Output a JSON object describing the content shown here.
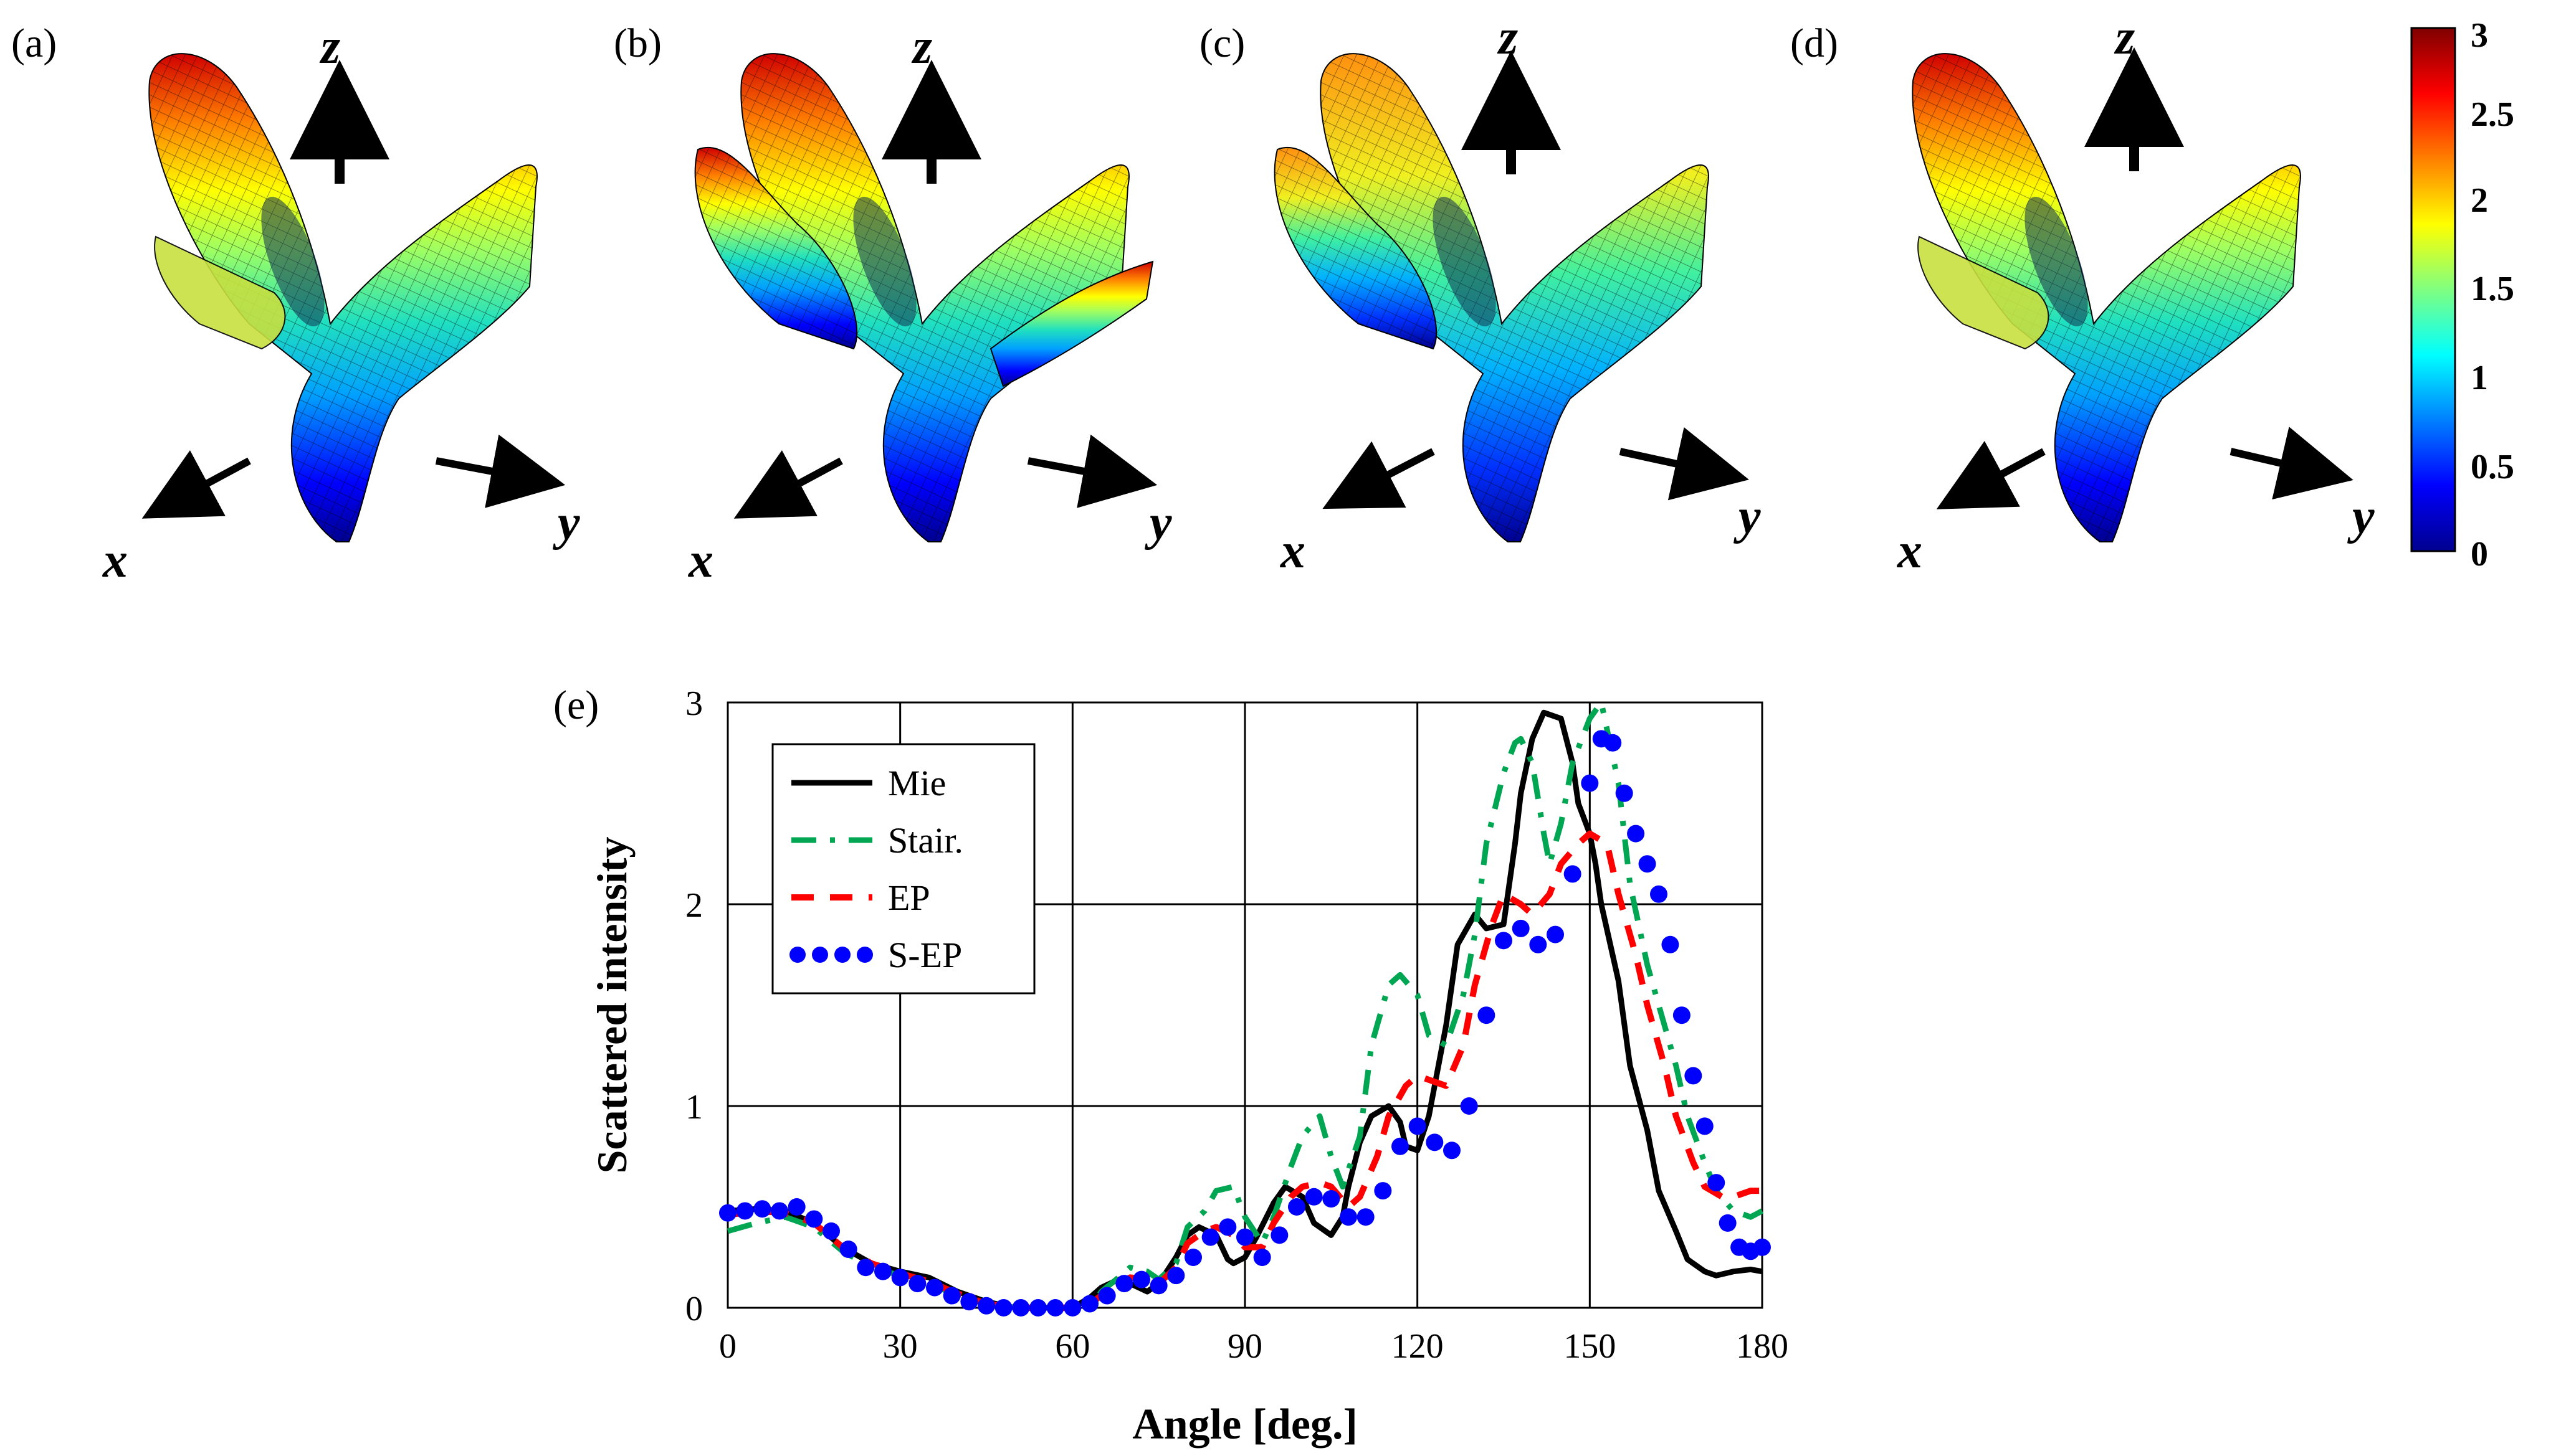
{
  "panels": {
    "labels": [
      "(a)",
      "(b)",
      "(c)",
      "(d)",
      "(e)"
    ],
    "axis_letters": {
      "x": "x",
      "y": "y",
      "z": "z"
    }
  },
  "colorbar": {
    "ticks": [
      "3",
      "2.5",
      "2",
      "1.5",
      "1",
      "0.5",
      "0"
    ],
    "min": 0,
    "max": 3,
    "colors": [
      "#00008f",
      "#0000ff",
      "#0080ff",
      "#00ffff",
      "#80ff80",
      "#ffff00",
      "#ff8000",
      "#ff0000",
      "#800000"
    ]
  },
  "chart_data": {
    "type": "line",
    "title": "",
    "xlabel": "Angle [deg.]",
    "ylabel": "Scattered intensity",
    "xlim": [
      0,
      180
    ],
    "ylim": [
      0,
      3
    ],
    "xticks": [
      0,
      30,
      60,
      90,
      120,
      150,
      180
    ],
    "yticks": [
      0,
      1,
      2,
      3
    ],
    "grid": true,
    "legend_position": "top-left",
    "series": [
      {
        "name": "Mie",
        "color": "#000000",
        "style": "solid",
        "x": [
          0,
          5,
          10,
          15,
          20,
          25,
          30,
          35,
          40,
          45,
          50,
          55,
          60,
          63,
          65,
          68,
          70,
          73,
          75,
          78,
          80,
          82,
          85,
          87,
          88,
          90,
          92,
          95,
          97,
          100,
          102,
          105,
          107,
          108,
          110,
          112,
          115,
          117,
          118,
          120,
          122,
          125,
          127,
          130,
          132,
          135,
          137,
          138,
          140,
          142,
          145,
          147,
          148,
          150,
          151,
          152,
          155,
          157,
          160,
          162,
          165,
          167,
          170,
          172,
          175,
          178,
          180
        ],
        "y": [
          0.48,
          0.49,
          0.48,
          0.42,
          0.3,
          0.22,
          0.18,
          0.15,
          0.08,
          0.03,
          0,
          0,
          0,
          0.05,
          0.1,
          0.14,
          0.12,
          0.08,
          0.12,
          0.25,
          0.36,
          0.4,
          0.36,
          0.24,
          0.22,
          0.25,
          0.35,
          0.52,
          0.6,
          0.55,
          0.42,
          0.36,
          0.45,
          0.6,
          0.82,
          0.95,
          1.0,
          0.92,
          0.8,
          0.78,
          0.95,
          1.4,
          1.8,
          1.95,
          1.88,
          1.9,
          2.3,
          2.55,
          2.82,
          2.95,
          2.92,
          2.7,
          2.5,
          2.35,
          2.2,
          2.0,
          1.62,
          1.2,
          0.88,
          0.58,
          0.38,
          0.24,
          0.18,
          0.16,
          0.18,
          0.19,
          0.18
        ]
      },
      {
        "name": "Stair.",
        "color": "#00a651",
        "style": "dash-dot",
        "x": [
          0,
          5,
          10,
          15,
          20,
          25,
          30,
          35,
          40,
          45,
          50,
          55,
          60,
          63,
          65,
          68,
          70,
          73,
          75,
          78,
          80,
          83,
          85,
          88,
          90,
          93,
          95,
          98,
          100,
          103,
          105,
          107,
          110,
          112,
          115,
          117,
          120,
          122,
          125,
          128,
          130,
          132,
          135,
          137,
          138,
          140,
          142,
          143,
          145,
          147,
          150,
          152,
          155,
          157,
          160,
          162,
          165,
          167,
          170,
          172,
          175,
          178,
          180
        ],
        "y": [
          0.38,
          0.42,
          0.45,
          0.4,
          0.28,
          0.2,
          0.16,
          0.12,
          0.06,
          0.02,
          0,
          0,
          0,
          0,
          0.08,
          0.15,
          0.2,
          0.18,
          0.14,
          0.22,
          0.4,
          0.48,
          0.58,
          0.6,
          0.45,
          0.32,
          0.45,
          0.7,
          0.85,
          0.95,
          0.75,
          0.6,
          0.85,
          1.3,
          1.6,
          1.65,
          1.55,
          1.35,
          1.3,
          1.55,
          1.85,
          2.3,
          2.65,
          2.8,
          2.82,
          2.7,
          2.35,
          2.2,
          2.4,
          2.7,
          2.92,
          3.0,
          2.6,
          2.1,
          1.7,
          1.5,
          1.2,
          0.95,
          0.72,
          0.58,
          0.48,
          0.45,
          0.48
        ]
      },
      {
        "name": "EP",
        "color": "#ff0000",
        "style": "dashed",
        "x": [
          0,
          5,
          10,
          15,
          20,
          25,
          30,
          35,
          40,
          45,
          50,
          55,
          60,
          63,
          65,
          68,
          70,
          73,
          75,
          78,
          80,
          83,
          85,
          88,
          90,
          93,
          95,
          98,
          100,
          103,
          105,
          108,
          110,
          113,
          115,
          118,
          120,
          123,
          125,
          128,
          130,
          133,
          135,
          138,
          140,
          143,
          145,
          148,
          150,
          153,
          155,
          158,
          160,
          163,
          165,
          168,
          170,
          173,
          175,
          178,
          180
        ],
        "y": [
          0.46,
          0.48,
          0.47,
          0.42,
          0.3,
          0.22,
          0.17,
          0.13,
          0.07,
          0.02,
          0,
          0,
          0,
          0.02,
          0.06,
          0.12,
          0.15,
          0.14,
          0.12,
          0.2,
          0.32,
          0.38,
          0.4,
          0.36,
          0.3,
          0.3,
          0.42,
          0.55,
          0.6,
          0.62,
          0.6,
          0.5,
          0.55,
          0.75,
          0.95,
          1.1,
          1.15,
          1.12,
          1.1,
          1.3,
          1.6,
          1.9,
          2.05,
          2.0,
          1.95,
          2.05,
          2.2,
          2.3,
          2.35,
          2.3,
          2.05,
          1.75,
          1.5,
          1.2,
          0.95,
          0.72,
          0.6,
          0.55,
          0.55,
          0.58,
          0.58
        ]
      },
      {
        "name": "S-EP",
        "color": "#0000ff",
        "style": "dotted",
        "x": [
          0,
          3,
          6,
          9,
          12,
          15,
          18,
          21,
          24,
          27,
          30,
          33,
          36,
          39,
          42,
          45,
          48,
          51,
          54,
          57,
          60,
          63,
          66,
          69,
          72,
          75,
          78,
          81,
          84,
          87,
          90,
          93,
          96,
          99,
          102,
          105,
          108,
          111,
          114,
          117,
          120,
          123,
          126,
          129,
          132,
          135,
          138,
          141,
          144,
          147,
          150,
          152,
          154,
          156,
          158,
          160,
          162,
          164,
          166,
          168,
          170,
          172,
          174,
          176,
          178,
          180
        ],
        "y": [
          0.47,
          0.48,
          0.49,
          0.48,
          0.5,
          0.44,
          0.38,
          0.29,
          0.2,
          0.18,
          0.15,
          0.12,
          0.1,
          0.06,
          0.03,
          0.01,
          0,
          0,
          0,
          0,
          0,
          0.02,
          0.06,
          0.12,
          0.14,
          0.11,
          0.16,
          0.25,
          0.35,
          0.4,
          0.35,
          0.25,
          0.36,
          0.5,
          0.55,
          0.54,
          0.45,
          0.45,
          0.58,
          0.8,
          0.9,
          0.82,
          0.78,
          1.0,
          1.45,
          1.82,
          1.88,
          1.8,
          1.85,
          2.15,
          2.6,
          2.82,
          2.8,
          2.55,
          2.35,
          2.2,
          2.05,
          1.8,
          1.45,
          1.15,
          0.9,
          0.62,
          0.42,
          0.3,
          0.28,
          0.3
        ]
      }
    ]
  }
}
